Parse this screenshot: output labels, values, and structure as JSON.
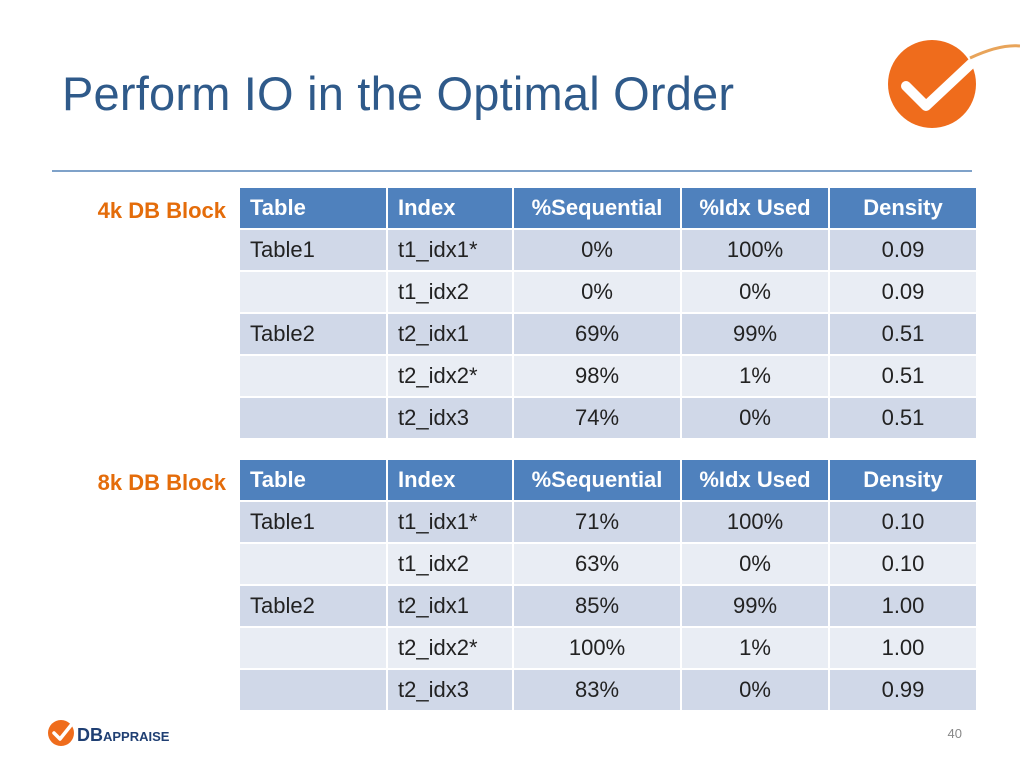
{
  "slide": {
    "title": "Perform IO in the Optimal Order",
    "page_number": "40",
    "brand": {
      "name_bold": "DB",
      "name_rest": "Appraise"
    },
    "colors": {
      "title": "#2f5a8a",
      "accent": "#e46c0a",
      "header": "#4f81bd",
      "row_odd": "#d0d8e8",
      "row_even": "#e9edf4"
    }
  },
  "tables": [
    {
      "label": "4k DB Block",
      "headers": [
        "Table",
        "Index",
        "%Sequential",
        "%Idx Used",
        "Density"
      ],
      "rows": [
        [
          "Table1",
          "t1_idx1*",
          "0%",
          "100%",
          "0.09"
        ],
        [
          "",
          "t1_idx2",
          "0%",
          "0%",
          "0.09"
        ],
        [
          "Table2",
          "t2_idx1",
          "69%",
          "99%",
          "0.51"
        ],
        [
          "",
          "t2_idx2*",
          "98%",
          "1%",
          "0.51"
        ],
        [
          "",
          "t2_idx3",
          "74%",
          "0%",
          "0.51"
        ]
      ]
    },
    {
      "label": "8k DB Block",
      "headers": [
        "Table",
        "Index",
        "%Sequential",
        "%Idx Used",
        "Density"
      ],
      "rows": [
        [
          "Table1",
          "t1_idx1*",
          "71%",
          "100%",
          "0.10"
        ],
        [
          "",
          "t1_idx2",
          "63%",
          "0%",
          "0.10"
        ],
        [
          "Table2",
          "t2_idx1",
          "85%",
          "99%",
          "1.00"
        ],
        [
          "",
          "t2_idx2*",
          "100%",
          "1%",
          "1.00"
        ],
        [
          "",
          "t2_idx3",
          "83%",
          "0%",
          "0.99"
        ]
      ]
    }
  ]
}
